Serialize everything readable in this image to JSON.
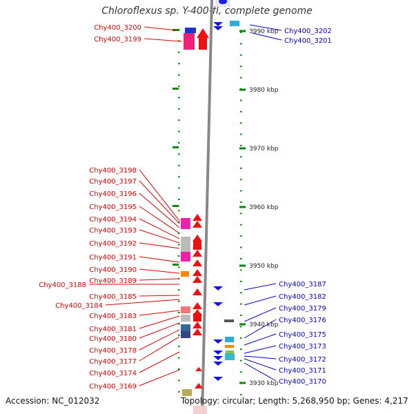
{
  "title": "Chloroflexus sp. Y-400-fl, complete genome",
  "accession": "Accession: NC_012032",
  "summary": "Topology: circular; Length: 5,268,950 bp; Genes: 4,217",
  "colors": {
    "left_label": "#dd0000",
    "right_label": "#0000cc",
    "tick": "#008800",
    "backbone": "#888888"
  },
  "ruler": [
    {
      "kbp": 3990,
      "label": "3990 kbp"
    },
    {
      "kbp": 3980,
      "label": "3980 kbp"
    },
    {
      "kbp": 3970,
      "label": "3970 kbp"
    },
    {
      "kbp": 3960,
      "label": "3960 kbp"
    },
    {
      "kbp": 3950,
      "label": "3950 kbp"
    },
    {
      "kbp": 3940,
      "label": "3940 kbp"
    },
    {
      "kbp": 3930,
      "label": "3930 kbp"
    }
  ],
  "left_genes": [
    "Chy400_3200",
    "Chy400_3199",
    "Chy400_3198",
    "Chy400_3197",
    "Chy400_3196",
    "Chy400_3195",
    "Chy400_3194",
    "Chy400_3193",
    "Chy400_3192",
    "Chy400_3191",
    "Chy400_3190",
    "Chy400_3189",
    "Chy400_3188",
    "Chy400_3185",
    "Chy400_3184",
    "Chy400_3183",
    "Chy400_3181",
    "Chy400_3180",
    "Chy400_3178",
    "Chy400_3177",
    "Chy400_3174",
    "Chy400_3169"
  ],
  "right_genes": [
    "Chy400_3202",
    "Chy400_3201",
    "Chy400_3187",
    "Chy400_3182",
    "Chy400_3179",
    "Chy400_3176",
    "Chy400_3175",
    "Chy400_3173",
    "Chy400_3172",
    "Chy400_3171",
    "Chy400_3170"
  ]
}
